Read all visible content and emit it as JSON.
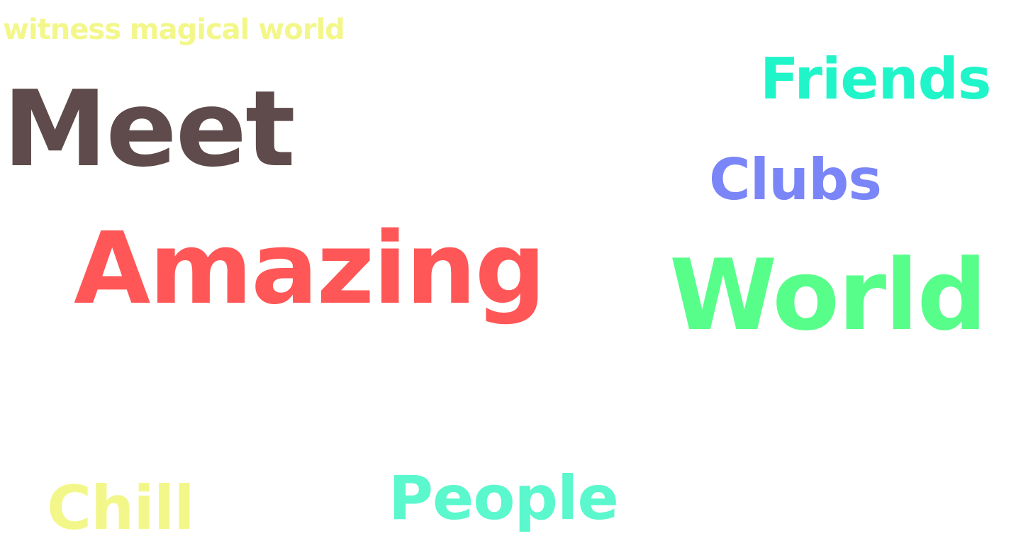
{
  "words": {
    "tagline": {
      "text": "witness magical world",
      "color": "#f3f78a"
    },
    "meet": {
      "text": "Meet",
      "color": "#5f4b4b"
    },
    "friends": {
      "text": "Friends",
      "color": "#20f5c9"
    },
    "clubs": {
      "text": "Clubs",
      "color": "#7a86f7"
    },
    "amazing": {
      "text": "Amazing",
      "color": "#ff5757"
    },
    "world": {
      "text": "World",
      "color": "#57ff8a"
    },
    "chill": {
      "text": "Chill",
      "color": "#f3f78a"
    },
    "people": {
      "text": "People",
      "color": "#5bf7cd"
    }
  }
}
